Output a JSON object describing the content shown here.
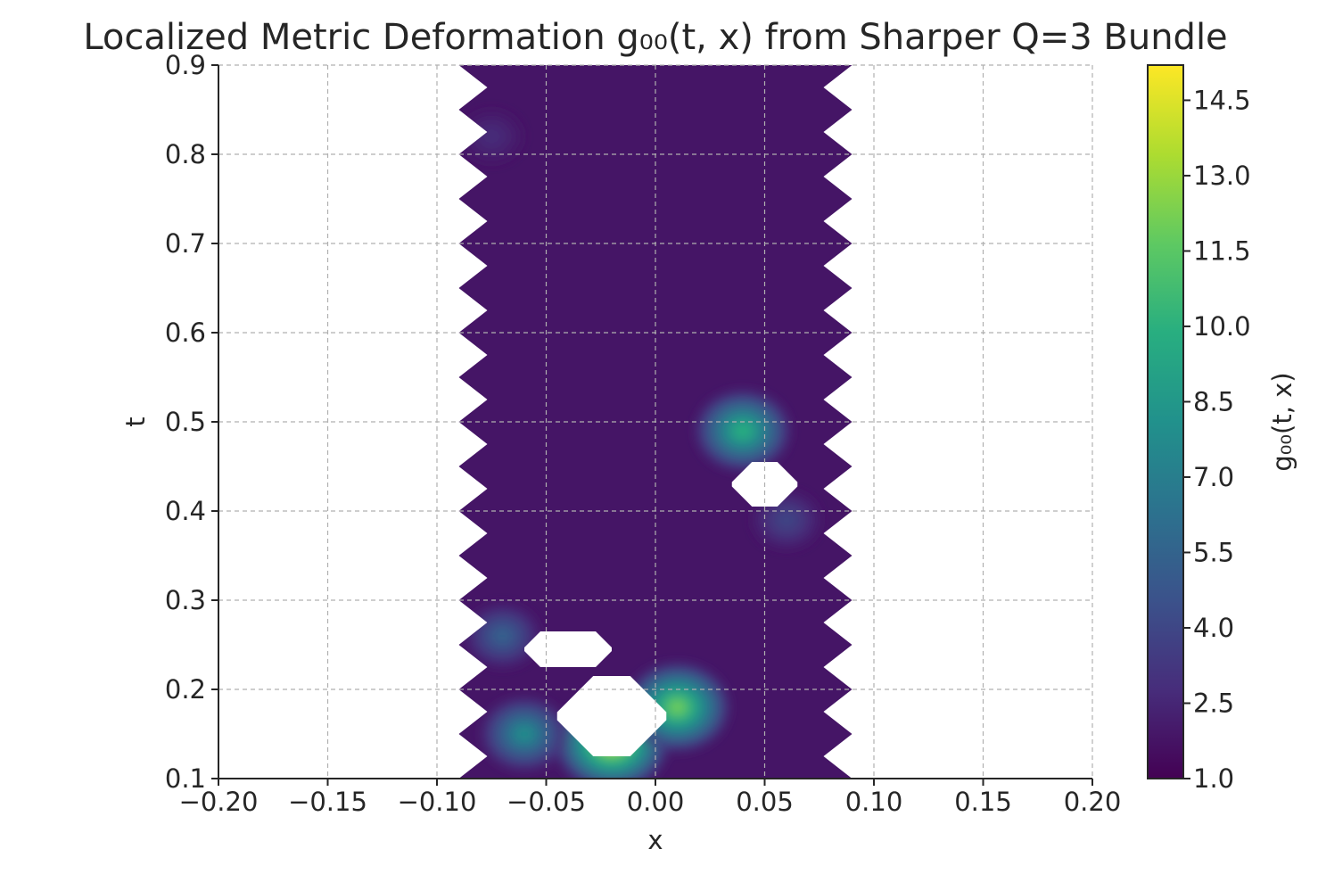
{
  "chart_data": {
    "type": "heatmap",
    "title": "Localized Metric Deformation g₀₀(t, x) from Sharper Q=3 Bundle",
    "xlabel": "x",
    "ylabel": "t",
    "xlim": [
      -0.2,
      0.2
    ],
    "ylim": [
      0.1,
      0.9
    ],
    "x_ticks": [
      "−0.20",
      "−0.15",
      "−0.10",
      "−0.05",
      "0.00",
      "0.05",
      "0.10",
      "0.15",
      "0.20"
    ],
    "y_ticks": [
      "0.1",
      "0.2",
      "0.3",
      "0.4",
      "0.5",
      "0.6",
      "0.7",
      "0.8",
      "0.9"
    ],
    "grid": true,
    "colorbar": {
      "label": "g₀₀(t, x)",
      "colormap": "viridis",
      "range": [
        1.0,
        15.2
      ],
      "ticks": [
        "1.0",
        "2.5",
        "4.0",
        "5.5",
        "7.0",
        "8.5",
        "10.0",
        "11.5",
        "13.0",
        "14.5"
      ]
    },
    "field_extent": {
      "x": [
        -0.09,
        0.09
      ],
      "t": [
        0.1,
        0.9
      ],
      "background_value": 1.8
    },
    "peaks": [
      {
        "x": -0.02,
        "t": 0.14,
        "value": 14.0
      },
      {
        "x": 0.01,
        "t": 0.18,
        "value": 12.0
      },
      {
        "x": -0.06,
        "t": 0.15,
        "value": 8.0
      },
      {
        "x": -0.07,
        "t": 0.26,
        "value": 5.5
      },
      {
        "x": 0.04,
        "t": 0.49,
        "value": 10.0
      },
      {
        "x": 0.06,
        "t": 0.39,
        "value": 4.0
      },
      {
        "x": -0.075,
        "t": 0.82,
        "value": 2.8
      }
    ],
    "undefined_regions": [
      {
        "x": [
          -0.06,
          -0.02
        ],
        "t": [
          0.225,
          0.265
        ]
      },
      {
        "x": [
          -0.045,
          0.005
        ],
        "t": [
          0.125,
          0.215
        ]
      },
      {
        "x": [
          0.035,
          0.065
        ],
        "t": [
          0.405,
          0.455
        ]
      }
    ]
  }
}
